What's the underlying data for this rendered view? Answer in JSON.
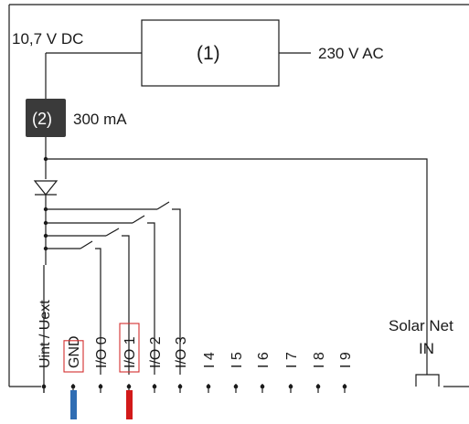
{
  "diagram": {
    "supply_voltage": "10,7 V DC",
    "power_unit_label": "(1)",
    "mains_voltage": "230 V AC",
    "fuse_label": "(2)",
    "fuse_current": "300 mA",
    "solar_net_line1": "Solar Net",
    "solar_net_line2": "IN",
    "terminals": [
      {
        "label": "Uint / Uext",
        "highlight": false
      },
      {
        "label": "GND",
        "highlight": true,
        "wire_color": "#2f6db3"
      },
      {
        "label": "I/O 0",
        "highlight": false
      },
      {
        "label": "I/O 1",
        "highlight": true,
        "wire_color": "#d21a1a"
      },
      {
        "label": "I/O 2",
        "highlight": false
      },
      {
        "label": "I/O 3",
        "highlight": false
      },
      {
        "label": "I 4",
        "highlight": false
      },
      {
        "label": "I 5",
        "highlight": false
      },
      {
        "label": "I 6",
        "highlight": false
      },
      {
        "label": "I 7",
        "highlight": false
      },
      {
        "label": "I 8",
        "highlight": false
      },
      {
        "label": "I 9",
        "highlight": false
      }
    ],
    "colors": {
      "line": "#1a1a1a",
      "fuse_fill": "#3a3a3a",
      "highlight_border": "#d32f2f",
      "gnd_wire": "#2f6db3",
      "io1_wire": "#d21a1a"
    }
  }
}
